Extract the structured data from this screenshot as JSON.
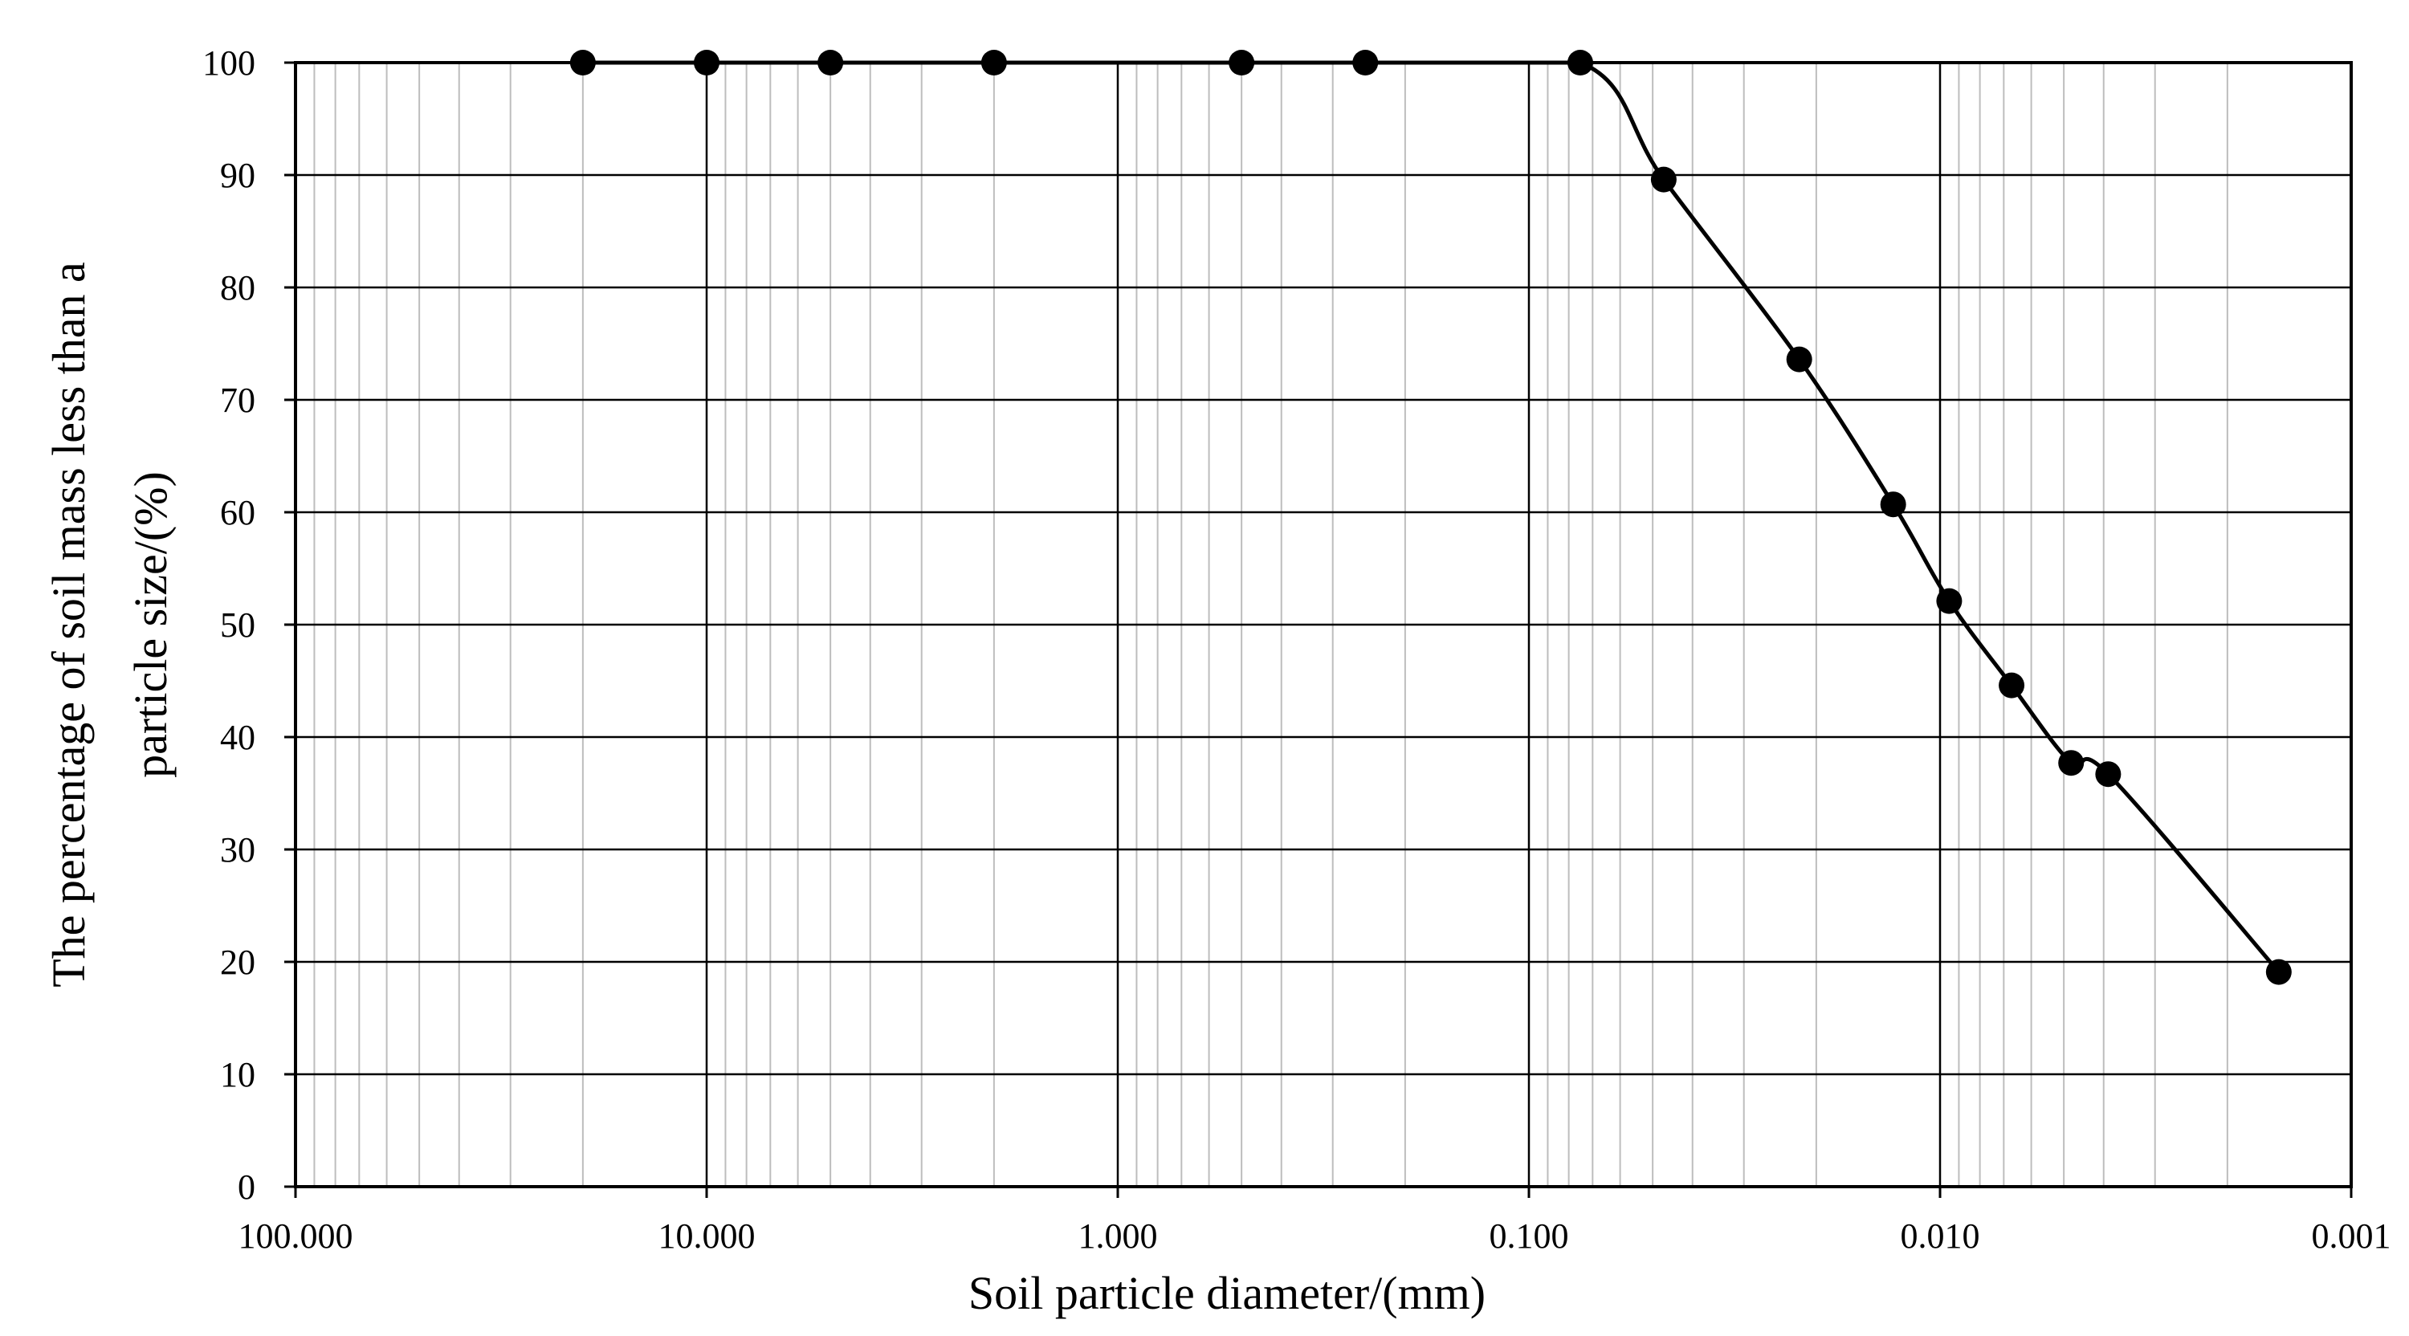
{
  "chart_data": {
    "type": "line",
    "title": "",
    "xlabel": "Soil particle diameter/(mm)",
    "ylabel_lines": [
      "The percentage of soil mass less than a",
      "particle size/(%)"
    ],
    "x_scale": "log",
    "x_reversed": true,
    "xlim": [
      100,
      0.001
    ],
    "ylim": [
      0,
      100
    ],
    "x_ticks": [
      100,
      10,
      1,
      0.1,
      0.01,
      0.001
    ],
    "x_tick_labels": [
      "100.000",
      "10.000",
      "1.000",
      "0.100",
      "0.010",
      "0.001"
    ],
    "y_ticks": [
      0,
      10,
      20,
      30,
      40,
      50,
      60,
      70,
      80,
      90,
      100
    ],
    "y_tick_labels": [
      "0",
      "10",
      "20",
      "30",
      "40",
      "50",
      "60",
      "70",
      "80",
      "90",
      "100"
    ],
    "grid": true,
    "legend": "none",
    "series": [
      {
        "x": [
          20,
          10,
          5,
          2,
          0.5,
          0.25,
          0.075,
          0.047,
          0.022,
          0.013,
          0.0095,
          0.0067,
          0.0048,
          0.0039,
          0.0015
        ],
        "y": [
          100,
          100,
          100,
          100,
          100,
          100,
          100,
          89.6,
          73.6,
          60.7,
          52.1,
          44.6,
          37.7,
          36.7,
          19.1
        ],
        "marker": "circle",
        "color": "#000000"
      }
    ]
  }
}
